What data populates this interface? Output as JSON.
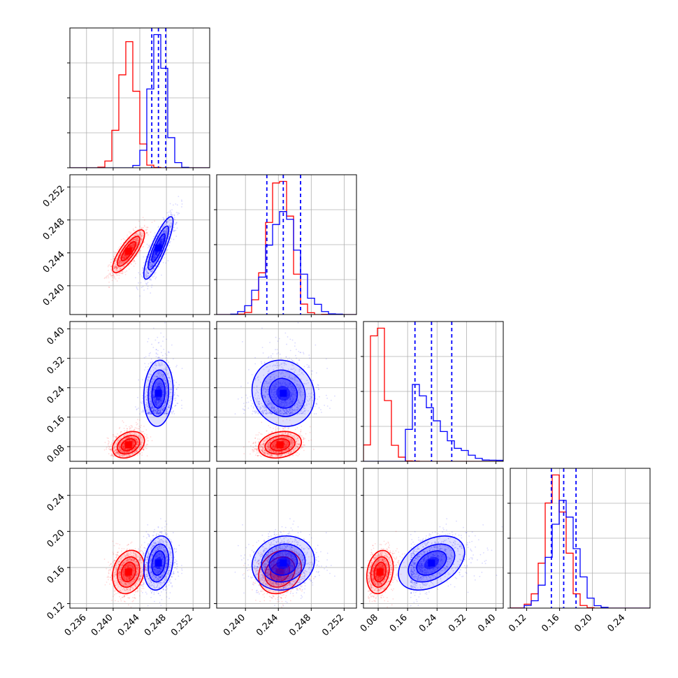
{
  "chart_data": {
    "type": "corner",
    "colors": {
      "red": "#ff0000",
      "blue": "#0000ff",
      "grid": "#b0b0b0"
    },
    "x_ranges": [
      [
        0.2335,
        0.2545
      ],
      [
        0.2365,
        0.2535
      ],
      [
        0.04,
        0.42
      ],
      [
        0.1,
        0.27
      ]
    ],
    "y_ranges_2d": [
      [
        0.2365,
        0.2535
      ],
      [
        0.04,
        0.42
      ],
      [
        0.115,
        0.27
      ]
    ],
    "x_tick_labels": [
      [
        "0.236",
        "0.240",
        "0.244",
        "0.248",
        "0.252"
      ],
      [
        "0.240",
        "0.244",
        "0.248",
        "0.252"
      ],
      [
        "0.08",
        "0.16",
        "0.24",
        "0.32",
        "0.40"
      ],
      [
        "0.12",
        "0.16",
        "0.20",
        "0.24"
      ]
    ],
    "y_tick_labels": [
      [
        "0.240",
        "0.244",
        "0.248",
        "0.252"
      ],
      [
        "0.08",
        "0.16",
        "0.24",
        "0.32",
        "0.40"
      ],
      [
        "0.12",
        "0.16",
        "0.20",
        "0.24"
      ]
    ],
    "series": [
      {
        "color": "red",
        "mean": [
          0.2423,
          0.2442,
          0.085,
          0.155
        ],
        "sd": [
          0.0012,
          0.0013,
          0.018,
          0.012
        ],
        "corr": [
          [
            1,
            0.8,
            0.3,
            0.2
          ],
          [
            0.8,
            1,
            0.2,
            0.2
          ],
          [
            0.3,
            0.2,
            1,
            0.2
          ],
          [
            0.2,
            0.2,
            0.2,
            1
          ]
        ]
      },
      {
        "color": "blue",
        "mean": [
          0.2468,
          0.2446,
          0.225,
          0.165
        ],
        "sd": [
          0.0011,
          0.0019,
          0.045,
          0.015
        ],
        "corr": [
          [
            1,
            0.85,
            0.1,
            0.2
          ],
          [
            0.85,
            1,
            -0.1,
            0.1
          ],
          [
            0.1,
            -0.1,
            1,
            0.4
          ],
          [
            0.2,
            0.1,
            0.4,
            1
          ]
        ]
      }
    ],
    "quantile_lines_blue": [
      [
        0.2458,
        0.2468,
        0.2479
      ],
      [
        0.2426,
        0.2446,
        0.2467
      ],
      [
        0.18,
        0.225,
        0.28
      ],
      [
        0.15,
        0.165,
        0.18
      ]
    ]
  }
}
